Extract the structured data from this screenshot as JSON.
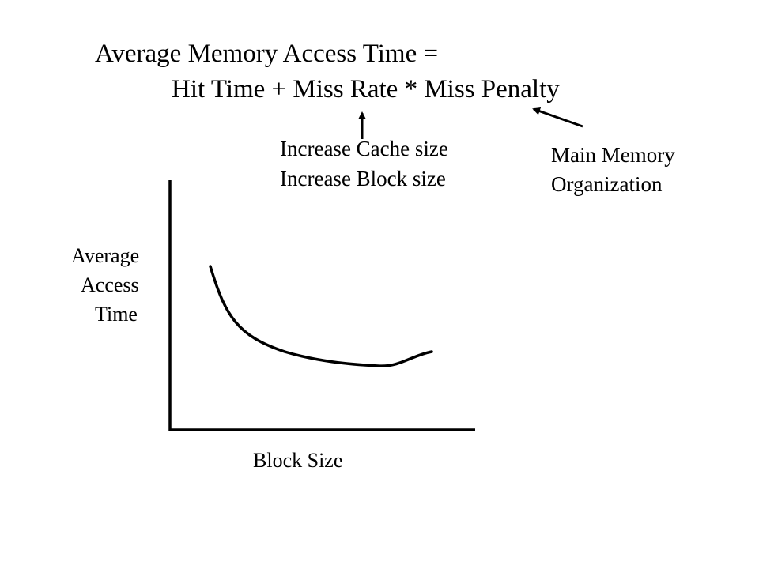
{
  "formula": {
    "line1": "Average Memory Access Time =",
    "line2": "Hit Time + Miss Rate * Miss Penalty"
  },
  "annotations": {
    "miss_rate_note": {
      "line1": "Increase Cache size",
      "line2": "Increase Block size"
    },
    "miss_penalty_note": {
      "line1": "Main Memory",
      "line2": "Organization"
    }
  },
  "graph": {
    "y_label": [
      "Average",
      "Access",
      "Time"
    ],
    "x_label": "Block Size"
  }
}
